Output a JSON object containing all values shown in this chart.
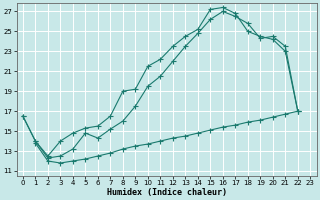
{
  "xlabel": "Humidex (Indice chaleur)",
  "bg_color": "#c8e8e8",
  "grid_color": "#b0d0d0",
  "line_color": "#1a7a6e",
  "xlim": [
    -0.5,
    23.5
  ],
  "ylim": [
    10.5,
    27.8
  ],
  "xticks": [
    0,
    1,
    2,
    3,
    4,
    5,
    6,
    7,
    8,
    9,
    10,
    11,
    12,
    13,
    14,
    15,
    16,
    17,
    18,
    19,
    20,
    21,
    22,
    23
  ],
  "yticks": [
    11,
    13,
    15,
    17,
    19,
    21,
    23,
    25,
    27
  ],
  "curve1_x": [
    0,
    1,
    2,
    3,
    4,
    5,
    6,
    7,
    8,
    9,
    10,
    11,
    12,
    13,
    14,
    15,
    16,
    17,
    18,
    19,
    20,
    21,
    22
  ],
  "curve1_y": [
    16.5,
    14.0,
    12.5,
    14.0,
    14.8,
    15.3,
    15.5,
    16.5,
    19.0,
    19.2,
    21.5,
    22.2,
    23.5,
    24.5,
    25.2,
    27.2,
    27.4,
    26.8,
    25.0,
    24.5,
    24.2,
    23.0,
    17.0
  ],
  "curve2_x": [
    0,
    1,
    2,
    3,
    4,
    5,
    6,
    7,
    8,
    9,
    10,
    11,
    12,
    13,
    14,
    15,
    16,
    17,
    18,
    19,
    20,
    21,
    22
  ],
  "curve2_y": [
    16.5,
    14.0,
    12.3,
    12.5,
    13.2,
    14.8,
    14.3,
    15.2,
    16.0,
    17.5,
    19.5,
    20.5,
    22.0,
    23.5,
    24.8,
    26.2,
    27.0,
    26.5,
    25.8,
    24.3,
    24.5,
    23.5,
    17.0
  ],
  "curve3_x": [
    1,
    2,
    3,
    4,
    5,
    6,
    7,
    8,
    9,
    10,
    11,
    12,
    13,
    14,
    15,
    16,
    17,
    18,
    19,
    20,
    21,
    22
  ],
  "curve3_y": [
    13.8,
    12.0,
    11.8,
    12.0,
    12.2,
    12.5,
    12.8,
    13.2,
    13.5,
    13.7,
    14.0,
    14.3,
    14.5,
    14.8,
    15.1,
    15.4,
    15.6,
    15.9,
    16.1,
    16.4,
    16.7,
    17.0
  ]
}
